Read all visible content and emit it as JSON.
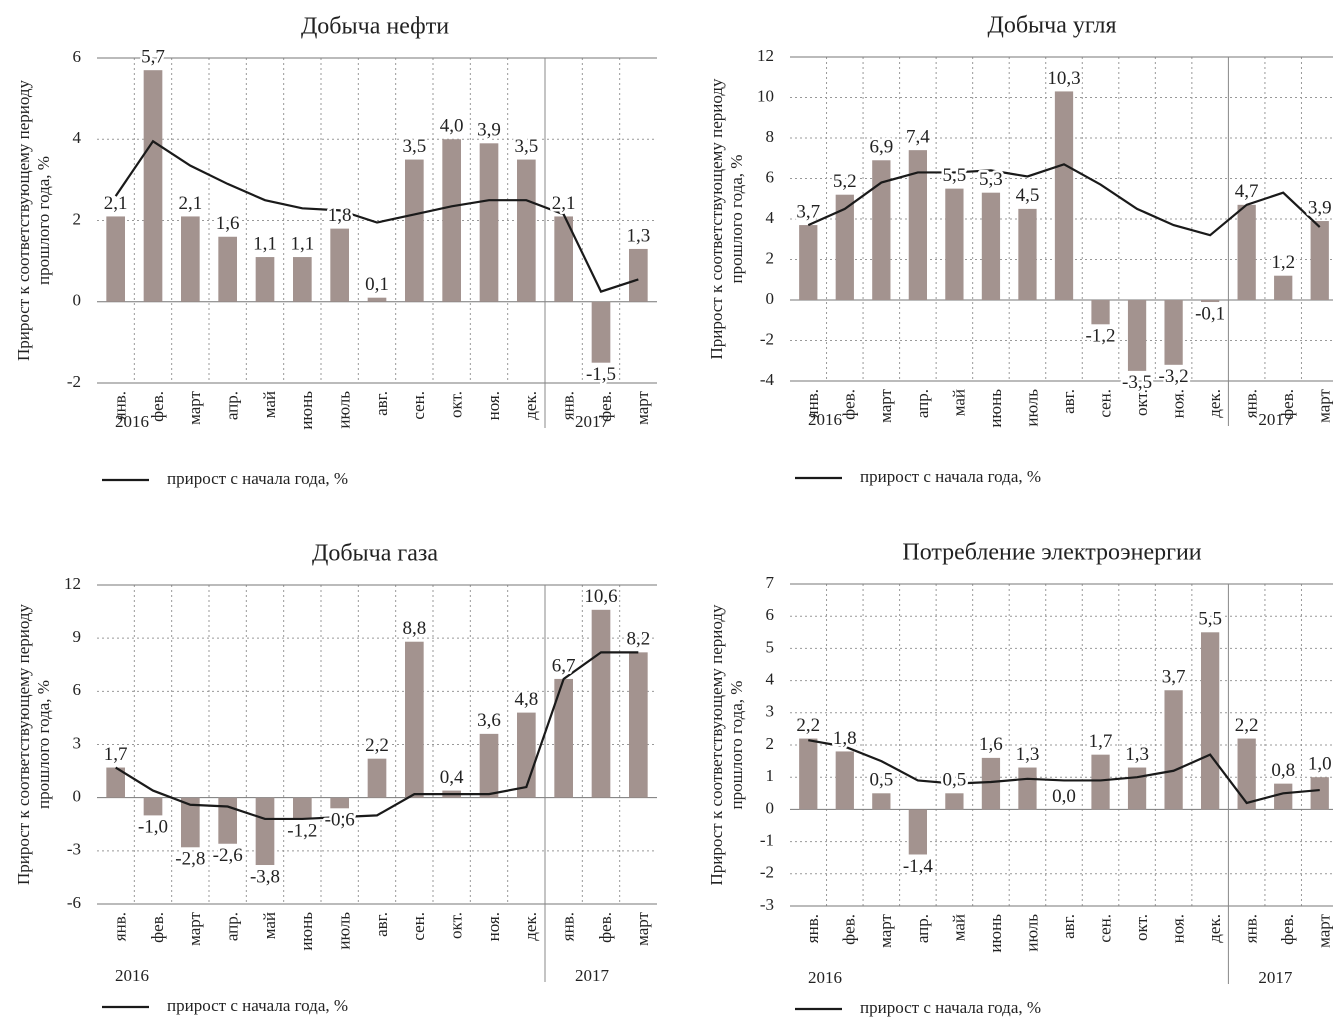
{
  "chart_data": [
    {
      "type": "combo",
      "title": "Добыча нефти",
      "y_label": [
        "Прирост к соответствующему периоду",
        "прошлого года, %"
      ],
      "category_groups": [
        {
          "label": "2016",
          "categories": [
            "янв.",
            "фев.",
            "март",
            "апр.",
            "май",
            "июнь",
            "июль",
            "авг.",
            "сен.",
            "окт.",
            "ноя.",
            "дек."
          ]
        },
        {
          "label": "2017",
          "categories": [
            "янв.",
            "фев.",
            "март"
          ]
        }
      ],
      "series": [
        {
          "type": "bar",
          "color": "#a3938f",
          "values": [
            2.1,
            5.7,
            2.1,
            1.6,
            1.1,
            1.1,
            1.8,
            0.1,
            3.5,
            4.0,
            3.9,
            3.5,
            2.1,
            -1.5,
            1.3
          ],
          "value_labels": [
            "2,1",
            "5,7",
            "2,1",
            "1,6",
            "1,1",
            "1,1",
            "1,8",
            "0,1",
            "3,5",
            "4,0",
            "3,9",
            "3,5",
            "2,1",
            "-1,5",
            "1,3"
          ]
        },
        {
          "type": "line",
          "name": "прирост с начала года, %",
          "color": "#1a1a1a",
          "values": [
            2.6,
            3.95,
            3.35,
            2.9,
            2.5,
            2.3,
            2.25,
            1.95,
            2.15,
            2.35,
            2.5,
            2.5,
            2.15,
            0.25,
            0.55
          ]
        }
      ],
      "ylim": [
        -2,
        6
      ],
      "yticks": [
        -2,
        0,
        2,
        4,
        6
      ],
      "grid": true,
      "legend": "bottom-left"
    },
    {
      "type": "combo",
      "title": "Добыча угля",
      "y_label": [
        "Прирост к соответствующему периоду",
        "прошлого года, %"
      ],
      "category_groups": [
        {
          "label": "2016",
          "categories": [
            "янв.",
            "фев.",
            "март",
            "апр.",
            "май",
            "июнь",
            "июль",
            "авг.",
            "сен.",
            "окт.",
            "ноя.",
            "дек."
          ]
        },
        {
          "label": "2017",
          "categories": [
            "янв.",
            "фев.",
            "март"
          ]
        }
      ],
      "series": [
        {
          "type": "bar",
          "color": "#a3938f",
          "values": [
            3.7,
            5.2,
            6.9,
            7.4,
            5.5,
            5.3,
            4.5,
            10.3,
            -1.2,
            -3.5,
            -3.2,
            -0.1,
            4.7,
            1.2,
            3.9
          ],
          "value_labels": [
            "3,7",
            "5,2",
            "6,9",
            "7,4",
            "5,5",
            "5,3",
            "4,5",
            "10,3",
            "-1,2",
            "-3,5",
            "-3,2",
            "-0,1",
            "4,7",
            "1,2",
            "3,9"
          ]
        },
        {
          "type": "line",
          "name": "прирост с начала года, %",
          "color": "#1a1a1a",
          "values": [
            3.7,
            4.5,
            5.8,
            6.3,
            6.3,
            6.4,
            6.1,
            6.7,
            5.7,
            4.5,
            3.7,
            3.2,
            4.7,
            5.3,
            3.6
          ]
        }
      ],
      "ylim": [
        -4,
        12
      ],
      "yticks": [
        -4,
        -2,
        0,
        2,
        4,
        6,
        8,
        10,
        12
      ],
      "grid": true,
      "legend": "bottom-left"
    },
    {
      "type": "combo",
      "title": "Добыча газа",
      "y_label": [
        "Прирост к соответствующему периоду",
        "прошлого года, %"
      ],
      "category_groups": [
        {
          "label": "2016",
          "categories": [
            "янв.",
            "фев.",
            "март",
            "апр.",
            "май",
            "июнь",
            "июль",
            "авг.",
            "сен.",
            "окт.",
            "ноя.",
            "дек."
          ]
        },
        {
          "label": "2017",
          "categories": [
            "янв.",
            "фев.",
            "март"
          ]
        }
      ],
      "series": [
        {
          "type": "bar",
          "color": "#a3938f",
          "values": [
            1.7,
            -1.0,
            -2.8,
            -2.6,
            -3.8,
            -1.2,
            -0.6,
            2.2,
            8.8,
            0.4,
            3.6,
            4.8,
            6.7,
            10.6,
            8.2
          ],
          "value_labels": [
            "1,7",
            "-1,0",
            "-2,8",
            "-2,6",
            "-3,8",
            "-1,2",
            "-0,6",
            "2,2",
            "8,8",
            "0,4",
            "3,6",
            "4,8",
            "6,7",
            "10,6",
            "8,2"
          ]
        },
        {
          "type": "line",
          "name": "прирост с начала года, %",
          "color": "#1a1a1a",
          "values": [
            1.7,
            0.4,
            -0.4,
            -0.5,
            -1.2,
            -1.2,
            -1.1,
            -1.0,
            0.2,
            0.2,
            0.2,
            0.6,
            6.7,
            8.2,
            8.2
          ]
        }
      ],
      "ylim": [
        -6,
        12
      ],
      "yticks": [
        -6,
        -3,
        0,
        3,
        6,
        9,
        12
      ],
      "grid": true,
      "legend": "bottom-left"
    },
    {
      "type": "combo",
      "title": "Потребление электроэнергии",
      "y_label": [
        "Прирост к соответствующему периоду",
        "прошлого года, %"
      ],
      "category_groups": [
        {
          "label": "2016",
          "categories": [
            "янв.",
            "фев.",
            "март",
            "апр.",
            "май",
            "июнь",
            "июль",
            "авг.",
            "сен.",
            "окт.",
            "ноя.",
            "дек."
          ]
        },
        {
          "label": "2017",
          "categories": [
            "янв.",
            "фев.",
            "март"
          ]
        }
      ],
      "series": [
        {
          "type": "bar",
          "color": "#a3938f",
          "values": [
            2.2,
            1.8,
            0.5,
            -1.4,
            0.5,
            1.6,
            1.3,
            0.0,
            1.7,
            1.3,
            3.7,
            5.5,
            2.2,
            0.8,
            1.0
          ],
          "value_labels": [
            "2,2",
            "1,8",
            "0,5",
            "-1,4",
            "0,5",
            "1,6",
            "1,3",
            "0,0",
            "1,7",
            "1,3",
            "3,7",
            "5,5",
            "2,2",
            "0,8",
            "1,0"
          ]
        },
        {
          "type": "line",
          "name": "прирост с начала года, %",
          "color": "#1a1a1a",
          "values": [
            2.15,
            1.95,
            1.5,
            0.9,
            0.8,
            0.85,
            0.95,
            0.9,
            0.9,
            1.0,
            1.2,
            1.7,
            0.2,
            0.5,
            0.6
          ]
        }
      ],
      "ylim": [
        -3,
        7
      ],
      "yticks": [
        -3,
        -2,
        -1,
        0,
        1,
        2,
        3,
        4,
        5,
        6,
        7
      ],
      "grid": true,
      "legend": "bottom-left"
    }
  ]
}
